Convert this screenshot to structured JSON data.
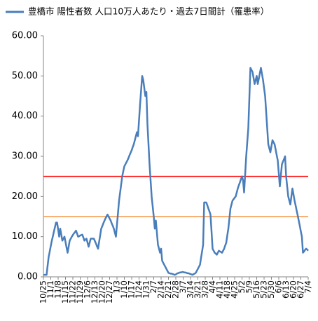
{
  "chart_data": {
    "type": "line",
    "series": [
      {
        "name": "豊橋市 陽性者数 人口10万人あたり・過去7日間計（罹患率）",
        "color": "#4a7ebb",
        "values": [
          0.5,
          0.5,
          0.5,
          0.5,
          2.8,
          5,
          6.3,
          7.7,
          9,
          10.1,
          11.3,
          12.4,
          13.5,
          13.5,
          11.8,
          10,
          12,
          10.5,
          9,
          9.5,
          10,
          8.7,
          7.3,
          6,
          7.5,
          9,
          9.5,
          10,
          10.4,
          10.8,
          11.1,
          11.5,
          10.8,
          10,
          10.1,
          10.3,
          10.4,
          10.5,
          9.8,
          9,
          9.3,
          9.5,
          8.5,
          7.5,
          8.5,
          9.5,
          9.5,
          9.5,
          9.5,
          8.9,
          8.3,
          7.6,
          7,
          8.7,
          10.3,
          12,
          12.6,
          13.3,
          13.9,
          14.5,
          15,
          15.5,
          15,
          14.5,
          14,
          13.3,
          12.7,
          12,
          11,
          10,
          13,
          16,
          19,
          21,
          23,
          25,
          26.3,
          27.5,
          28,
          28.5,
          29,
          29.6,
          30.3,
          30.9,
          31.5,
          32.3,
          33,
          34,
          35,
          36,
          35,
          39,
          43,
          46.5,
          50,
          49,
          47,
          45,
          46,
          38,
          33,
          28,
          24,
          20,
          17.5,
          15,
          12,
          14,
          11,
          8,
          7,
          6,
          7,
          4,
          3.5,
          3,
          2.5,
          2,
          1.5,
          1,
          0.9,
          0.8,
          0.8,
          0.7,
          0.6,
          0.5,
          0.6,
          0.8,
          0.9,
          1,
          1.1,
          1.1,
          1.2,
          1.2,
          1.1,
          1.1,
          1,
          0.9,
          0.9,
          0.8,
          0.7,
          0.6,
          0.5,
          0.7,
          0.8,
          1,
          1.5,
          2,
          2.5,
          3,
          4.7,
          6.3,
          8,
          18.5,
          18.5,
          18.5,
          17.8,
          17,
          16.3,
          15.5,
          11.3,
          7,
          6.5,
          6,
          5.8,
          5.5,
          6,
          6.5,
          6.3,
          6.2,
          6,
          6.5,
          7,
          7.8,
          8.5,
          10.3,
          12,
          14.5,
          17,
          18,
          19,
          19.3,
          19.7,
          20,
          21,
          22,
          22.8,
          23.5,
          24.3,
          25,
          24,
          21,
          25.5,
          30,
          33.5,
          37,
          44.5,
          52,
          51.5,
          51,
          49.5,
          48,
          49,
          50,
          48,
          49.3,
          50.7,
          52,
          50.5,
          49,
          47,
          45,
          41,
          37,
          33,
          32,
          31,
          32.5,
          34,
          33.5,
          33,
          31.7,
          30.3,
          29,
          25.8,
          22.5,
          25.3,
          28,
          28.7,
          29.3,
          30,
          25,
          22.5,
          20,
          19,
          18,
          20,
          22,
          20.5,
          19,
          17.8,
          16.5,
          15.3,
          14,
          12.7,
          11.3,
          10,
          6,
          6.3,
          6.7,
          7,
          6.8,
          6.5
        ]
      }
    ],
    "categories": [
      "10/25",
      null,
      null,
      null,
      null,
      null,
      null,
      "11/1",
      null,
      null,
      null,
      null,
      null,
      null,
      "11/8",
      null,
      null,
      null,
      null,
      null,
      null,
      "11/15",
      null,
      null,
      null,
      null,
      null,
      null,
      "11/22",
      null,
      null,
      null,
      null,
      null,
      null,
      "11/29",
      null,
      null,
      null,
      null,
      null,
      null,
      "12/6",
      null,
      null,
      null,
      null,
      null,
      null,
      "12/13",
      null,
      null,
      null,
      null,
      null,
      null,
      "12/20",
      null,
      null,
      null,
      null,
      null,
      null,
      "12/27",
      null,
      null,
      null,
      null,
      null,
      null,
      "1/3",
      null,
      null,
      null,
      null,
      null,
      null,
      "1/10",
      null,
      null,
      null,
      null,
      null,
      null,
      "1/17",
      null,
      null,
      null,
      null,
      null,
      null,
      "1/24",
      null,
      null,
      null,
      null,
      null,
      null,
      "1/31",
      null,
      null,
      null,
      null,
      null,
      null,
      "2/7",
      null,
      null,
      null,
      null,
      null,
      null,
      "2/14",
      null,
      null,
      null,
      null,
      null,
      null,
      "2/21",
      null,
      null,
      null,
      null,
      null,
      null,
      "2/28",
      null,
      null,
      null,
      null,
      null,
      null,
      "3/7",
      null,
      null,
      null,
      null,
      null,
      null,
      "3/14",
      null,
      null,
      null,
      null,
      null,
      null,
      "3/21",
      null,
      null,
      null,
      null,
      null,
      null,
      "3/28",
      null,
      null,
      null,
      null,
      null,
      null,
      "4/4",
      null,
      null,
      null,
      null,
      null,
      null,
      "4/11",
      null,
      null,
      null,
      null,
      null,
      null,
      "4/18",
      null,
      null,
      null,
      null,
      null,
      null,
      "4/25",
      null,
      null,
      null,
      null,
      null,
      null,
      "5/2",
      null,
      null,
      null,
      null,
      null,
      null,
      "5/9",
      null,
      null,
      null,
      null,
      null,
      null,
      "5/16",
      null,
      null,
      null,
      null,
      null,
      null,
      "5/23",
      null,
      null,
      null,
      null,
      null,
      null,
      "5/30",
      null,
      null,
      null,
      null,
      null,
      null,
      "6/6",
      null,
      null,
      null,
      null,
      null,
      null,
      "6/13",
      null,
      null,
      null,
      null,
      null,
      null,
      "6/20",
      null,
      null,
      null,
      null,
      null,
      null,
      "6/27",
      null,
      null,
      null,
      null,
      null,
      null,
      "7/4"
    ],
    "ylim": [
      0,
      60
    ],
    "yticks": [
      {
        "value": 0,
        "label": "0.00"
      },
      {
        "value": 10,
        "label": "10.00"
      },
      {
        "value": 20,
        "label": "20.00"
      },
      {
        "value": 30,
        "label": "30.00"
      },
      {
        "value": 40,
        "label": "40.00"
      },
      {
        "value": 50,
        "label": "50.00"
      },
      {
        "value": 60,
        "label": "60.00"
      }
    ],
    "reference_lines": [
      {
        "value": 25,
        "color": "#ff0000"
      },
      {
        "value": 15,
        "color": "#f79646"
      }
    ],
    "grid": false,
    "legend": "top-left"
  }
}
